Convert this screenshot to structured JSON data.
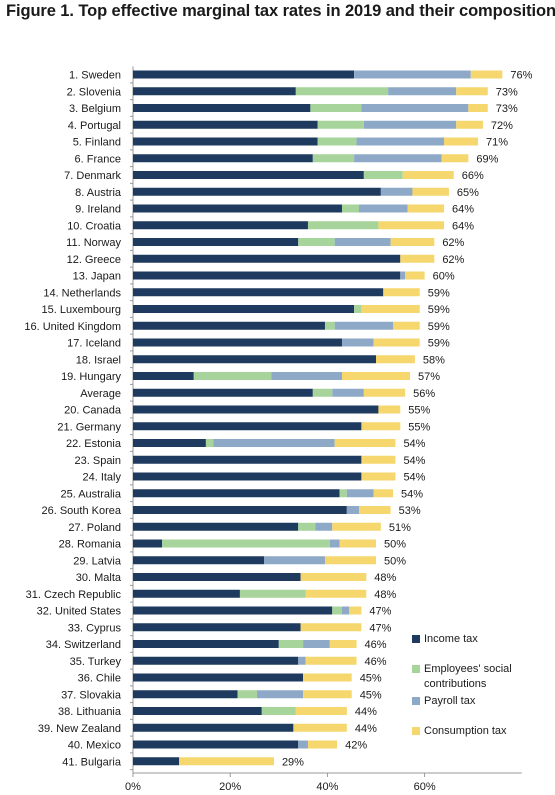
{
  "title": "Figure 1. Top effective marginal tax rates in 2019 and their composition.",
  "colors": {
    "income": "#1f3a5f",
    "employees": "#a6d49a",
    "payroll": "#8ea9c8",
    "consumption": "#f5d76e",
    "axis": "#999999",
    "text": "#1a1a1a"
  },
  "legend": [
    {
      "key": "income",
      "label": "Income tax"
    },
    {
      "key": "employees",
      "label": "Employees' social contributions"
    },
    {
      "key": "payroll",
      "label": "Payroll tax"
    },
    {
      "key": "consumption",
      "label": "Consumption tax"
    }
  ],
  "chart_data": {
    "type": "bar",
    "orientation": "horizontal",
    "stacked": true,
    "xlim": [
      0,
      80
    ],
    "x_ticks": [
      "0%",
      "20%",
      "40%",
      "60%"
    ],
    "grid": false,
    "legend_position": "right-bottom",
    "categories": [
      "1. Sweden",
      "2. Slovenia",
      "3. Belgium",
      "4. Portugal",
      "5. Finland",
      "6. France",
      "7. Denmark",
      "8. Austria",
      "9. Ireland",
      "10. Croatia",
      "11. Norway",
      "12. Greece",
      "13. Japan",
      "14. Netherlands",
      "15. Luxembourg",
      "16. United Kingdom",
      "17. Iceland",
      "18. Israel",
      "19. Hungary",
      "Average",
      "20. Canada",
      "21. Germany",
      "22. Estonia",
      "23. Spain",
      "24. Italy",
      "25. Australia",
      "26. South Korea",
      "27. Poland",
      "28. Romania",
      "29. Latvia",
      "30. Malta",
      "31. Czech Republic",
      "32. United States",
      "33. Cyprus",
      "34. Switzerland",
      "35. Turkey",
      "36. Chile",
      "37. Slovakia",
      "38. Lithuania",
      "39. New Zealand",
      "40. Mexico",
      "41. Bulgaria"
    ],
    "totals": [
      "76%",
      "73%",
      "73%",
      "72%",
      "71%",
      "69%",
      "66%",
      "65%",
      "64%",
      "64%",
      "62%",
      "62%",
      "60%",
      "59%",
      "59%",
      "59%",
      "59%",
      "58%",
      "57%",
      "56%",
      "55%",
      "55%",
      "54%",
      "54%",
      "54%",
      "54%",
      "53%",
      "51%",
      "50%",
      "50%",
      "48%",
      "48%",
      "47%",
      "47%",
      "46%",
      "46%",
      "45%",
      "45%",
      "44%",
      "44%",
      "42%",
      "29%"
    ],
    "series": [
      {
        "name": "Income tax",
        "key": "income",
        "values": [
          45.5,
          33.5,
          36.5,
          38,
          38,
          37,
          47.5,
          51,
          43,
          36,
          34,
          55,
          55,
          51.5,
          45.5,
          39.5,
          43,
          50,
          12.5,
          37,
          50.5,
          47,
          15,
          47,
          47,
          42.5,
          44,
          34,
          6,
          27,
          34.5,
          22,
          41,
          34.5,
          30,
          34,
          35,
          21.5,
          26.5,
          33,
          34,
          9.5
        ]
      },
      {
        "name": "Employees' social contributions",
        "key": "employees",
        "values": [
          0,
          19,
          10.5,
          9.5,
          8,
          8.5,
          8,
          0,
          3.5,
          14.5,
          7.5,
          0,
          0,
          0,
          1.5,
          2,
          0,
          0,
          16,
          4,
          0,
          0,
          1.5,
          0,
          0,
          1.5,
          0,
          3.5,
          34.5,
          0,
          0,
          13.5,
          2,
          0,
          5,
          0,
          0,
          4,
          7,
          0,
          0,
          0
        ]
      },
      {
        "name": "Payroll tax",
        "key": "payroll",
        "values": [
          24,
          14,
          22,
          19,
          18,
          18,
          0,
          6.5,
          10,
          0,
          11.5,
          0,
          1,
          0,
          0,
          12,
          6.5,
          0,
          14.5,
          6.5,
          0,
          0,
          25,
          0,
          0,
          5.5,
          2.5,
          3.5,
          2,
          12.5,
          0,
          0,
          1.5,
          0,
          5.5,
          1.5,
          0,
          9.5,
          0,
          0,
          2,
          0
        ]
      },
      {
        "name": "Consumption tax",
        "key": "consumption",
        "values": [
          6.5,
          6.5,
          4,
          5.5,
          7,
          5.5,
          10.5,
          7.5,
          7.5,
          13.5,
          9,
          7,
          4,
          7.5,
          12,
          5.5,
          9.5,
          8,
          14,
          8.5,
          4.5,
          8,
          12.5,
          7,
          7,
          4,
          6.5,
          10,
          7.5,
          10.5,
          13.5,
          12.5,
          2.5,
          12.5,
          5.5,
          10.5,
          10,
          10,
          10.5,
          11,
          6,
          19.5
        ]
      }
    ]
  }
}
